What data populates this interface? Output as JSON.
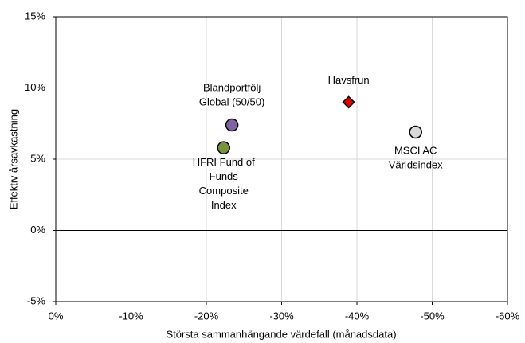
{
  "chart_data": {
    "type": "scatter",
    "xlabel": "Största sammanhängande värdefall (månadsdata)",
    "ylabel": "Effektiv årsavkastning",
    "xlim": [
      0,
      -60
    ],
    "xticks": [
      {
        "value": 0,
        "label": "0%"
      },
      {
        "value": -10,
        "label": "-10%"
      },
      {
        "value": -20,
        "label": "-20%"
      },
      {
        "value": -30,
        "label": "-30%"
      },
      {
        "value": -40,
        "label": "-40%"
      },
      {
        "value": -50,
        "label": "-50%"
      },
      {
        "value": -60,
        "label": "-60%"
      }
    ],
    "ylim": [
      -5,
      15
    ],
    "yticks": [
      {
        "value": -5,
        "label": "-5%"
      },
      {
        "value": 0,
        "label": "0%"
      },
      {
        "value": 5,
        "label": "5%"
      },
      {
        "value": 10,
        "label": "10%"
      },
      {
        "value": 15,
        "label": "15%"
      }
    ],
    "grid": true,
    "series": [
      {
        "label_lines": [
          "Blandportfölj",
          "Global (50/50)"
        ],
        "marker": "circle",
        "color": "#8064a2",
        "x": [
          -23.4
        ],
        "values": [
          7.4
        ]
      },
      {
        "label_lines": [
          "HFRI Fund of",
          "Funds",
          "Composite",
          "Index"
        ],
        "marker": "circle",
        "color": "#77933c",
        "x": [
          -22.3
        ],
        "values": [
          5.8
        ]
      },
      {
        "label_lines": [
          "Havsfrun"
        ],
        "marker": "diamond",
        "color": "#e00000",
        "x": [
          -38.9
        ],
        "values": [
          9.0
        ]
      },
      {
        "label_lines": [
          "MSCI AC",
          "Världsindex"
        ],
        "marker": "circle",
        "color": "#d9d9d9",
        "x": [
          -47.8
        ],
        "values": [
          6.9
        ]
      }
    ]
  }
}
